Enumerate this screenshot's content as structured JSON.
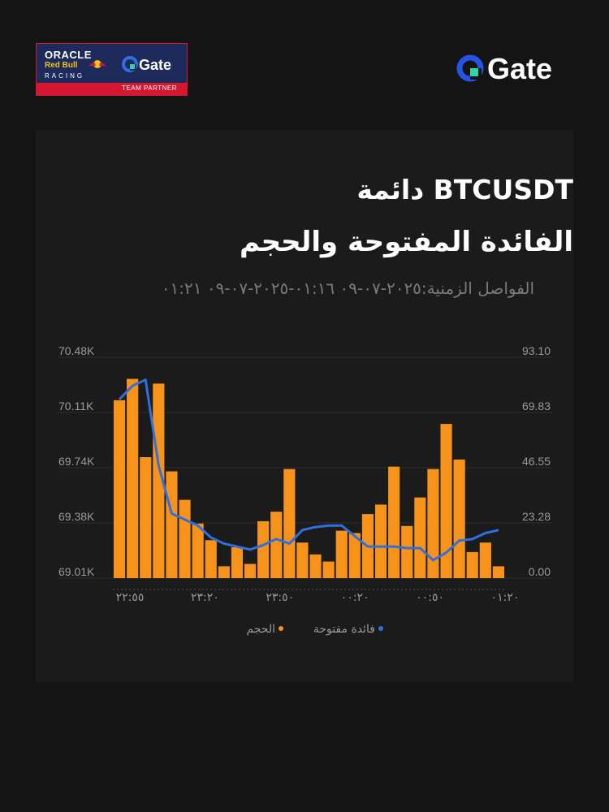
{
  "partner_badge": {
    "line1": "ORACLE",
    "line2": "Red Bull",
    "line3": "RACING",
    "partner_brand": "Gate",
    "caption": "TEAM PARTNER",
    "bg_color": "#1f2a5c",
    "accent_color": "#d4182f"
  },
  "brand": {
    "name": "Gate",
    "icon": "gate-logo-icon",
    "accent_color": "#2354e6"
  },
  "header": {
    "title_line1": "BTCUSDT دائمة",
    "title_line2": "الفائدة المفتوحة والحجم",
    "interval": "الفواصل الزمنية:٢٠٢٥-٠٧-٠٩ ٠١:١٦-٢٠٢٥-٠٧-٠٩ ٠١:٢١"
  },
  "chart_data": {
    "type": "bar",
    "title": "",
    "x_tick_labels": [
      "٢٢:٥٥",
      "٢٣:٢٠",
      "٢٣:٥٠",
      "٠٠:٢٠",
      "٠٠:٥٠",
      "٠١:٢٠"
    ],
    "left_axis": {
      "ticks": [
        "70.48K",
        "70.11K",
        "69.74K",
        "69.38K",
        "69.01K"
      ],
      "ylim": [
        69.01,
        70.48
      ],
      "unit": "K"
    },
    "right_axis": {
      "ticks": [
        "93.10",
        "69.83",
        "46.55",
        "23.28",
        "0.00"
      ],
      "ylim": [
        0,
        93.1
      ]
    },
    "series": [
      {
        "name": "الحجم",
        "kind": "bar",
        "color": "#f7931a",
        "axis": "right",
        "values": [
          75,
          84,
          51,
          82,
          45,
          33,
          23,
          16,
          5,
          13,
          6,
          24,
          28,
          46,
          15,
          10,
          7,
          20,
          19,
          27,
          31,
          47,
          22,
          34,
          46,
          65,
          50,
          11,
          15,
          5
        ]
      },
      {
        "name": "فائدة مفتوحة",
        "kind": "line",
        "color": "#2f6fe0",
        "axis": "left",
        "values": [
          70.2,
          70.29,
          70.33,
          69.76,
          69.44,
          69.4,
          69.36,
          69.28,
          69.24,
          69.22,
          69.2,
          69.23,
          69.27,
          69.24,
          69.33,
          69.35,
          69.36,
          69.36,
          69.29,
          69.22,
          69.22,
          69.22,
          69.21,
          69.21,
          69.13,
          69.18,
          69.26,
          69.27,
          69.31,
          69.33
        ]
      }
    ],
    "legend_position": "bottom",
    "grid": true
  }
}
